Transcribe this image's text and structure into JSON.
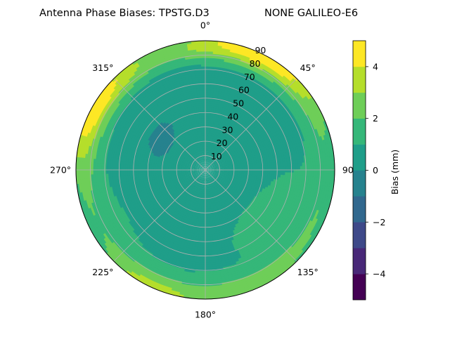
{
  "chart_data": {
    "type": "heatmap",
    "projection": "polar",
    "title_left": "Antenna Phase Biases: TPSTG.D3",
    "title_right": "NONE GALILEO-E6",
    "angular_axis": {
      "zero_location": "north",
      "direction": "clockwise",
      "tick_labels": [
        {
          "angle": 0,
          "label": "0°"
        },
        {
          "angle": 45,
          "label": "45°"
        },
        {
          "angle": 90,
          "label": "90°"
        },
        {
          "angle": 135,
          "label": "135°"
        },
        {
          "angle": 180,
          "label": "180°"
        },
        {
          "angle": 225,
          "label": "225°"
        },
        {
          "angle": 270,
          "label": "270°"
        },
        {
          "angle": 315,
          "label": "315°"
        }
      ]
    },
    "radial_axis": {
      "range": [
        0,
        90
      ],
      "tick_labels": [
        "10",
        "20",
        "30",
        "40",
        "50",
        "60",
        "70",
        "80",
        "90"
      ],
      "tick_values": [
        10,
        20,
        30,
        40,
        50,
        60,
        70,
        80,
        90
      ],
      "label_angle_deg": 22.5
    },
    "grid": true,
    "colorbar": {
      "label": "Bias (mm)",
      "range": [
        -5,
        5
      ],
      "levels": [
        -5,
        -4,
        -3,
        -2,
        -1,
        0,
        1,
        2,
        3,
        4,
        5
      ],
      "tick_values": [
        -4,
        -2,
        0,
        2,
        4
      ],
      "tick_labels": [
        "−4",
        "−2",
        "0",
        "2",
        "4"
      ],
      "colors": [
        "#440154",
        "#482878",
        "#3e4989",
        "#31688e",
        "#26828e",
        "#1f9e89",
        "#35b779",
        "#6ece58",
        "#b5de2b",
        "#fde725"
      ],
      "placement": "right"
    },
    "field_description": {
      "dominant_band": "0 to 1 mm",
      "regions": [
        {
          "bias_band": "1 to 2",
          "where": "ring near 80-90 elevation and a band around azimuth 90-200"
        },
        {
          "bias_band": "2 to 3",
          "where": "outer edge near azimuth 0-45, 300-320 and 190-230"
        },
        {
          "bias_band": "3 to 4",
          "where": "outer edge near azimuth 20-60 and 290-315"
        },
        {
          "bias_band": "4 to 5",
          "where": "outer rim near azimuth 30-50, 290-305 and 200-210"
        }
      ]
    }
  }
}
